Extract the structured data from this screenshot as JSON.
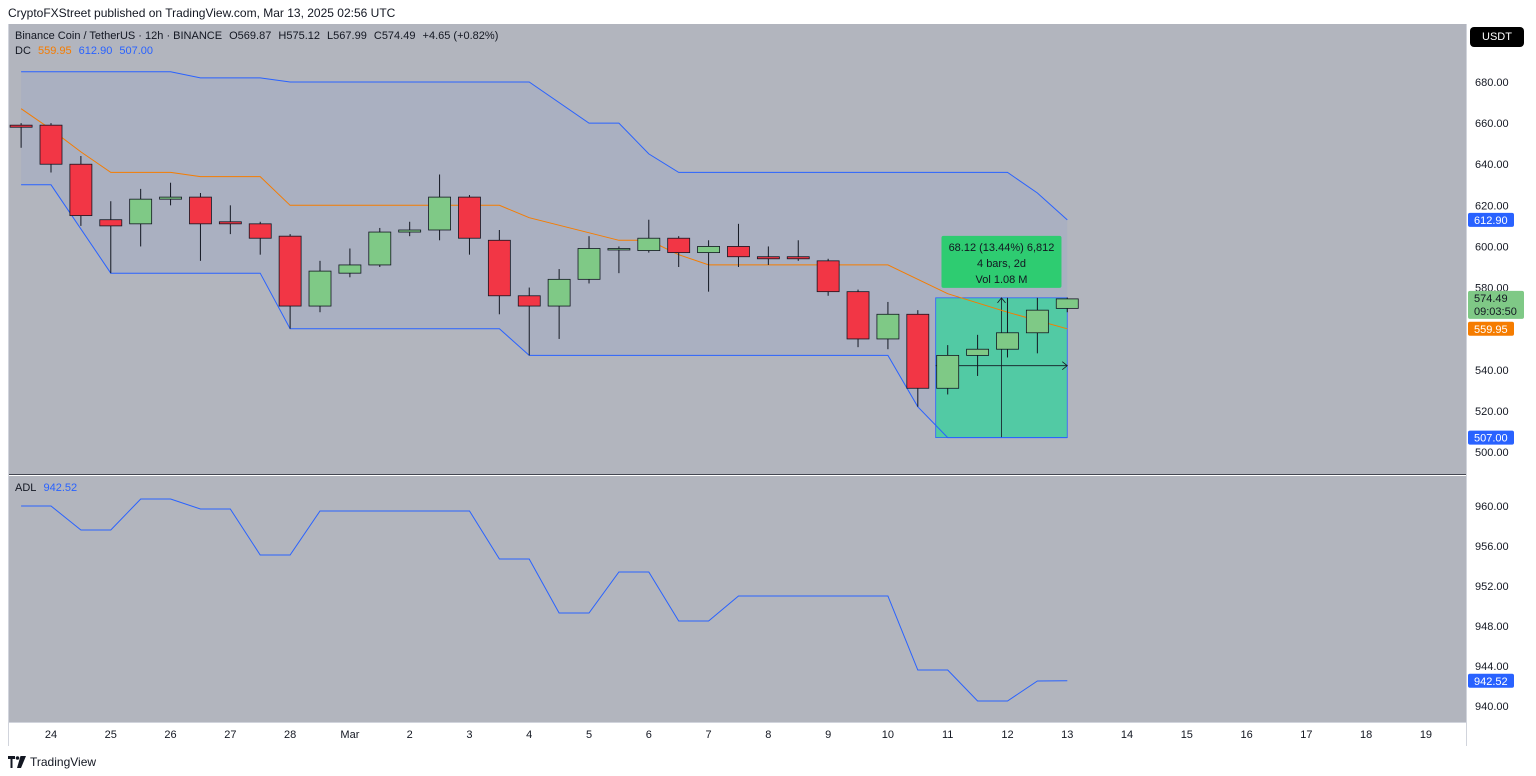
{
  "header": {
    "publisher": "CryptoFXStreet published on TradingView.com, Mar 13, 2025 02:56 UTC"
  },
  "legend": {
    "symbol": "Binance Coin / TetherUS · 12h · BINANCE",
    "open": "O569.87",
    "high": "H575.12",
    "low": "L567.99",
    "close": "C574.49",
    "change": "+4.65 (+0.82%)",
    "dc_label": "DC",
    "dc_basis": "559.95",
    "dc_upper": "612.90",
    "dc_lower": "507.00",
    "adl_label": "ADL",
    "adl_value": "942.52"
  },
  "unit_badge": "USDT",
  "footer": {
    "brand": "TradingView"
  },
  "colors": {
    "up": "#7fc986",
    "down": "#f23645",
    "channel": "#2962ff",
    "basis": "#f57c00",
    "range_fill": "#34d399",
    "pane_bg": "#b2b5be"
  },
  "chart_data": [
    {
      "type": "candlestick",
      "x_axis_type": "date",
      "xticks": [
        "24",
        "25",
        "26",
        "27",
        "28",
        "Mar",
        "2",
        "3",
        "4",
        "5",
        "6",
        "7",
        "8",
        "9",
        "10",
        "11",
        "12",
        "13",
        "14",
        "15",
        "16",
        "17",
        "18",
        "19"
      ],
      "xtick_dates": [
        "2025-02-24",
        "2025-02-25",
        "2025-02-26",
        "2025-02-27",
        "2025-02-28",
        "2025-03-01",
        "2025-03-02",
        "2025-03-03",
        "2025-03-04",
        "2025-03-05",
        "2025-03-06",
        "2025-03-07",
        "2025-03-08",
        "2025-03-09",
        "2025-03-10",
        "2025-03-11",
        "2025-03-12",
        "2025-03-13",
        "2025-03-14",
        "2025-03-15",
        "2025-03-16",
        "2025-03-17",
        "2025-03-18",
        "2025-03-19"
      ],
      "ylim": [
        492,
        700
      ],
      "yticks": [
        500,
        520,
        540,
        560,
        580,
        600,
        620,
        640,
        660,
        680
      ],
      "candles": [
        {
          "t": "2025-02-23 12:00",
          "o": 659,
          "h": 660,
          "l": 648,
          "c": 658
        },
        {
          "t": "2025-02-24 00:00",
          "o": 659,
          "h": 660,
          "l": 636,
          "c": 640
        },
        {
          "t": "2025-02-24 12:00",
          "o": 640,
          "h": 644,
          "l": 610,
          "c": 615
        },
        {
          "t": "2025-02-25 00:00",
          "o": 613,
          "h": 622,
          "l": 587,
          "c": 610
        },
        {
          "t": "2025-02-25 12:00",
          "o": 611,
          "h": 628,
          "l": 600,
          "c": 623
        },
        {
          "t": "2025-02-26 00:00",
          "o": 623,
          "h": 631,
          "l": 620,
          "c": 624
        },
        {
          "t": "2025-02-26 12:00",
          "o": 624,
          "h": 626,
          "l": 593,
          "c": 611
        },
        {
          "t": "2025-02-27 00:00",
          "o": 612,
          "h": 620,
          "l": 606,
          "c": 611
        },
        {
          "t": "2025-02-27 12:00",
          "o": 611,
          "h": 612,
          "l": 596,
          "c": 604
        },
        {
          "t": "2025-02-28 00:00",
          "o": 605,
          "h": 606,
          "l": 560,
          "c": 571
        },
        {
          "t": "2025-02-28 12:00",
          "o": 571,
          "h": 593,
          "l": 568,
          "c": 588
        },
        {
          "t": "2025-03-01 00:00",
          "o": 587,
          "h": 599,
          "l": 585,
          "c": 591
        },
        {
          "t": "2025-03-01 12:00",
          "o": 591,
          "h": 609,
          "l": 590,
          "c": 607
        },
        {
          "t": "2025-03-02 00:00",
          "o": 607,
          "h": 612,
          "l": 605,
          "c": 608
        },
        {
          "t": "2025-03-02 12:00",
          "o": 608,
          "h": 635,
          "l": 603,
          "c": 624
        },
        {
          "t": "2025-03-03 00:00",
          "o": 624,
          "h": 625,
          "l": 596,
          "c": 604
        },
        {
          "t": "2025-03-03 12:00",
          "o": 603,
          "h": 608,
          "l": 567,
          "c": 576
        },
        {
          "t": "2025-03-04 00:00",
          "o": 576,
          "h": 580,
          "l": 547,
          "c": 571
        },
        {
          "t": "2025-03-04 12:00",
          "o": 571,
          "h": 589,
          "l": 555,
          "c": 584
        },
        {
          "t": "2025-03-05 00:00",
          "o": 584,
          "h": 605,
          "l": 582,
          "c": 599
        },
        {
          "t": "2025-03-05 12:00",
          "o": 599,
          "h": 600,
          "l": 587,
          "c": 599
        },
        {
          "t": "2025-03-06 00:00",
          "o": 598,
          "h": 613,
          "l": 597,
          "c": 604
        },
        {
          "t": "2025-03-06 12:00",
          "o": 604,
          "h": 605,
          "l": 590,
          "c": 597
        },
        {
          "t": "2025-03-07 00:00",
          "o": 597,
          "h": 603,
          "l": 578,
          "c": 600
        },
        {
          "t": "2025-03-07 12:00",
          "o": 600,
          "h": 611,
          "l": 590,
          "c": 595
        },
        {
          "t": "2025-03-08 00:00",
          "o": 595,
          "h": 600,
          "l": 591,
          "c": 594
        },
        {
          "t": "2025-03-08 12:00",
          "o": 595,
          "h": 603,
          "l": 593,
          "c": 594
        },
        {
          "t": "2025-03-09 00:00",
          "o": 593,
          "h": 594,
          "l": 576,
          "c": 578
        },
        {
          "t": "2025-03-09 12:00",
          "o": 578,
          "h": 579,
          "l": 551,
          "c": 555
        },
        {
          "t": "2025-03-10 00:00",
          "o": 555,
          "h": 573,
          "l": 550,
          "c": 567
        },
        {
          "t": "2025-03-10 12:00",
          "o": 567,
          "h": 569,
          "l": 522,
          "c": 531
        },
        {
          "t": "2025-03-11 00:00",
          "o": 531,
          "h": 552,
          "l": 528,
          "c": 547
        },
        {
          "t": "2025-03-11 12:00",
          "o": 547,
          "h": 557,
          "l": 537,
          "c": 550
        },
        {
          "t": "2025-03-12 00:00",
          "o": 550,
          "h": 575,
          "l": 546,
          "c": 558
        },
        {
          "t": "2025-03-12 12:00",
          "o": 558,
          "h": 575,
          "l": 548,
          "c": 569
        },
        {
          "t": "2025-03-13 00:00",
          "o": 569.87,
          "h": 575.12,
          "l": 567.99,
          "c": 574.49
        }
      ],
      "donchian": {
        "upper": [
          {
            "t": "2025-02-23 12:00",
            "v": 685
          },
          {
            "t": "2025-02-26 00:00",
            "v": 685
          },
          {
            "t": "2025-02-26 12:00",
            "v": 682
          },
          {
            "t": "2025-02-27 12:00",
            "v": 682
          },
          {
            "t": "2025-02-28 00:00",
            "v": 680
          },
          {
            "t": "2025-03-04 00:00",
            "v": 680
          },
          {
            "t": "2025-03-05 00:00",
            "v": 660
          },
          {
            "t": "2025-03-05 12:00",
            "v": 660
          },
          {
            "t": "2025-03-06 00:00",
            "v": 645
          },
          {
            "t": "2025-03-06 12:00",
            "v": 636
          },
          {
            "t": "2025-03-12 00:00",
            "v": 636
          },
          {
            "t": "2025-03-12 12:00",
            "v": 626
          },
          {
            "t": "2025-03-13 00:00",
            "v": 612.9
          }
        ],
        "basis": [
          {
            "t": "2025-02-23 12:00",
            "v": 667
          },
          {
            "t": "2025-02-24 00:00",
            "v": 657
          },
          {
            "t": "2025-02-24 12:00",
            "v": 646
          },
          {
            "t": "2025-02-25 00:00",
            "v": 636
          },
          {
            "t": "2025-02-26 00:00",
            "v": 636
          },
          {
            "t": "2025-02-26 12:00",
            "v": 634
          },
          {
            "t": "2025-02-27 12:00",
            "v": 634
          },
          {
            "t": "2025-02-28 00:00",
            "v": 620
          },
          {
            "t": "2025-03-03 00:00",
            "v": 620
          },
          {
            "t": "2025-03-03 12:00",
            "v": 620
          },
          {
            "t": "2025-03-04 00:00",
            "v": 614
          },
          {
            "t": "2025-03-05 12:00",
            "v": 603
          },
          {
            "t": "2025-03-06 00:00",
            "v": 603
          },
          {
            "t": "2025-03-06 12:00",
            "v": 596
          },
          {
            "t": "2025-03-07 00:00",
            "v": 591
          },
          {
            "t": "2025-03-10 00:00",
            "v": 591
          },
          {
            "t": "2025-03-10 12:00",
            "v": 584
          },
          {
            "t": "2025-03-11 00:00",
            "v": 577
          },
          {
            "t": "2025-03-12 00:00",
            "v": 568
          },
          {
            "t": "2025-03-13 00:00",
            "v": 559.95
          }
        ],
        "lower": [
          {
            "t": "2025-02-23 12:00",
            "v": 630
          },
          {
            "t": "2025-02-24 00:00",
            "v": 630
          },
          {
            "t": "2025-02-25 00:00",
            "v": 587
          },
          {
            "t": "2025-02-27 12:00",
            "v": 587
          },
          {
            "t": "2025-02-28 00:00",
            "v": 560
          },
          {
            "t": "2025-03-03 12:00",
            "v": 560
          },
          {
            "t": "2025-03-04 00:00",
            "v": 547
          },
          {
            "t": "2025-03-10 00:00",
            "v": 547
          },
          {
            "t": "2025-03-10 12:00",
            "v": 522
          },
          {
            "t": "2025-03-11 00:00",
            "v": 507
          },
          {
            "t": "2025-03-13 00:00",
            "v": 507
          }
        ]
      },
      "price_labels": [
        {
          "value": 612.9,
          "text": "612.90",
          "color": "#2962ff"
        },
        {
          "value": 559.95,
          "text": "559.95",
          "color": "#f57c00"
        },
        {
          "value": 507.0,
          "text": "507.00",
          "color": "#2962ff"
        }
      ],
      "last_price": {
        "value": 574.49,
        "text": "574.49",
        "countdown": "09:03:50",
        "color": "#7fc986"
      },
      "measure": {
        "t_start": "2025-03-11 00:00",
        "t_end": "2025-03-13 00:00",
        "p_low": 507,
        "p_high": 575,
        "line1": "68.12 (13.44%) 6,812",
        "line2": "4 bars, 2d",
        "line3": "Vol 1.08 M"
      }
    },
    {
      "type": "line",
      "name": "ADL",
      "ylim": [
        938,
        964
      ],
      "yticks": [
        940,
        944,
        948,
        952,
        956,
        960
      ],
      "series": [
        {
          "name": "ADL",
          "points": [
            {
              "t": "2025-02-23 12:00",
              "v": 960
            },
            {
              "t": "2025-02-24 00:00",
              "v": 960
            },
            {
              "t": "2025-02-24 12:00",
              "v": 957.6
            },
            {
              "t": "2025-02-25 00:00",
              "v": 957.6
            },
            {
              "t": "2025-02-25 12:00",
              "v": 960.7
            },
            {
              "t": "2025-02-26 00:00",
              "v": 960.7
            },
            {
              "t": "2025-02-26 12:00",
              "v": 959.7
            },
            {
              "t": "2025-02-27 00:00",
              "v": 959.7
            },
            {
              "t": "2025-02-27 12:00",
              "v": 955.1
            },
            {
              "t": "2025-02-28 00:00",
              "v": 955.1
            },
            {
              "t": "2025-02-28 12:00",
              "v": 959.5
            },
            {
              "t": "2025-03-03 00:00",
              "v": 959.5
            },
            {
              "t": "2025-03-03 12:00",
              "v": 954.7
            },
            {
              "t": "2025-03-04 00:00",
              "v": 954.7
            },
            {
              "t": "2025-03-04 12:00",
              "v": 949.3
            },
            {
              "t": "2025-03-05 00:00",
              "v": 949.3
            },
            {
              "t": "2025-03-05 12:00",
              "v": 953.4
            },
            {
              "t": "2025-03-06 00:00",
              "v": 953.4
            },
            {
              "t": "2025-03-06 12:00",
              "v": 948.5
            },
            {
              "t": "2025-03-07 00:00",
              "v": 948.5
            },
            {
              "t": "2025-03-07 12:00",
              "v": 951
            },
            {
              "t": "2025-03-10 00:00",
              "v": 951
            },
            {
              "t": "2025-03-10 12:00",
              "v": 943.6
            },
            {
              "t": "2025-03-11 00:00",
              "v": 943.6
            },
            {
              "t": "2025-03-11 12:00",
              "v": 940.5
            },
            {
              "t": "2025-03-12 00:00",
              "v": 940.5
            },
            {
              "t": "2025-03-12 12:00",
              "v": 942.5
            },
            {
              "t": "2025-03-13 00:00",
              "v": 942.52
            }
          ]
        }
      ],
      "last_value": {
        "value": 942.52,
        "text": "942.52",
        "color": "#2962ff"
      }
    }
  ]
}
